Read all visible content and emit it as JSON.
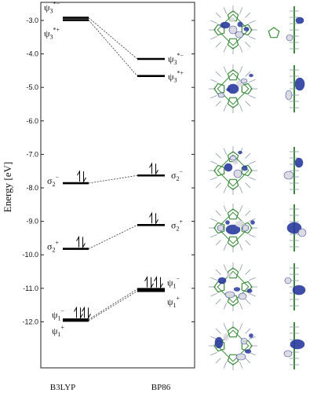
{
  "chart_data": {
    "type": "energy-level-diagram",
    "ylabel": "Energy [eV]",
    "ylim": [
      -12.35,
      -2.65
    ],
    "yticks": [
      -3.0,
      -4.0,
      -5.0,
      -6.0,
      -7.0,
      -8.0,
      -9.0,
      -10.0,
      -11.0,
      -12.0
    ],
    "ytick_labels": [
      "-3.0",
      "-4.0",
      "-5.0",
      "-6.0",
      "-7.0",
      "-8.0",
      "-9.0",
      "-10.0",
      "-11.0",
      "-12.0"
    ],
    "columns": [
      "B3LYP",
      "BP86"
    ],
    "levels": [
      {
        "id": "psi3m_b3",
        "column": "B3LYP",
        "energy": -2.92,
        "label": "ψ3",
        "sup": "*−",
        "occupied": false
      },
      {
        "id": "psi3p_b3",
        "column": "B3LYP",
        "energy": -2.99,
        "label": "ψ3",
        "sup": "*+",
        "occupied": false
      },
      {
        "id": "sig2m_b3",
        "column": "B3LYP",
        "energy": -7.86,
        "label": "σ2",
        "sup": "−",
        "occupied": true
      },
      {
        "id": "sig2p_b3",
        "column": "B3LYP",
        "energy": -9.82,
        "label": "σ2",
        "sup": "+",
        "occupied": true
      },
      {
        "id": "psi1m_b3",
        "column": "B3LYP",
        "energy": -11.93,
        "label": "ψ1",
        "sup": "−",
        "occupied": true
      },
      {
        "id": "psi1p_b3",
        "column": "B3LYP",
        "energy": -11.97,
        "label": "ψ1",
        "sup": "+",
        "occupied": true
      },
      {
        "id": "psi3m_bp",
        "column": "BP86",
        "energy": -4.15,
        "label": "ψ3",
        "sup": "*−",
        "occupied": false
      },
      {
        "id": "psi3p_bp",
        "column": "BP86",
        "energy": -4.66,
        "label": "ψ3",
        "sup": "*+",
        "occupied": false
      },
      {
        "id": "sig2m_bp",
        "column": "BP86",
        "energy": -7.63,
        "label": "σ2",
        "sup": "−",
        "occupied": true
      },
      {
        "id": "sig2p_bp",
        "column": "BP86",
        "energy": -9.11,
        "label": "σ2",
        "sup": "+",
        "occupied": true
      },
      {
        "id": "psi1m_bp",
        "column": "BP86",
        "energy": -11.02,
        "label": "ψ1",
        "sup": "−",
        "occupied": true
      },
      {
        "id": "psi1p_bp",
        "column": "BP86",
        "energy": -11.08,
        "label": "ψ1",
        "sup": "+",
        "occupied": true
      }
    ],
    "connectors": [
      [
        "psi3m_b3",
        "psi3m_bp"
      ],
      [
        "psi3p_b3",
        "psi3p_bp"
      ],
      [
        "sig2m_b3",
        "sig2m_bp"
      ],
      [
        "sig2p_b3",
        "sig2p_bp"
      ],
      [
        "psi1m_b3",
        "psi1m_bp"
      ],
      [
        "psi1p_b3",
        "psi1p_bp"
      ]
    ],
    "orbital_images": [
      {
        "name": "orbital-psi3-minus",
        "top_view": true,
        "side_view": true
      },
      {
        "name": "orbital-psi3-plus",
        "top_view": true,
        "side_view": true
      },
      {
        "name": "orbital-sigma2-minus",
        "top_view": true,
        "side_view": true
      },
      {
        "name": "orbital-sigma2-plus",
        "top_view": true,
        "side_view": true
      },
      {
        "name": "orbital-psi1-minus",
        "top_view": true,
        "side_view": true
      },
      {
        "name": "orbital-psi1-plus",
        "top_view": true,
        "side_view": true
      }
    ],
    "colors": {
      "lobe_positive": "#2a3a9e",
      "lobe_negative": "#d8d8de",
      "framework": "#3a8a3a",
      "hydrogen": "#8a9aa8"
    }
  }
}
